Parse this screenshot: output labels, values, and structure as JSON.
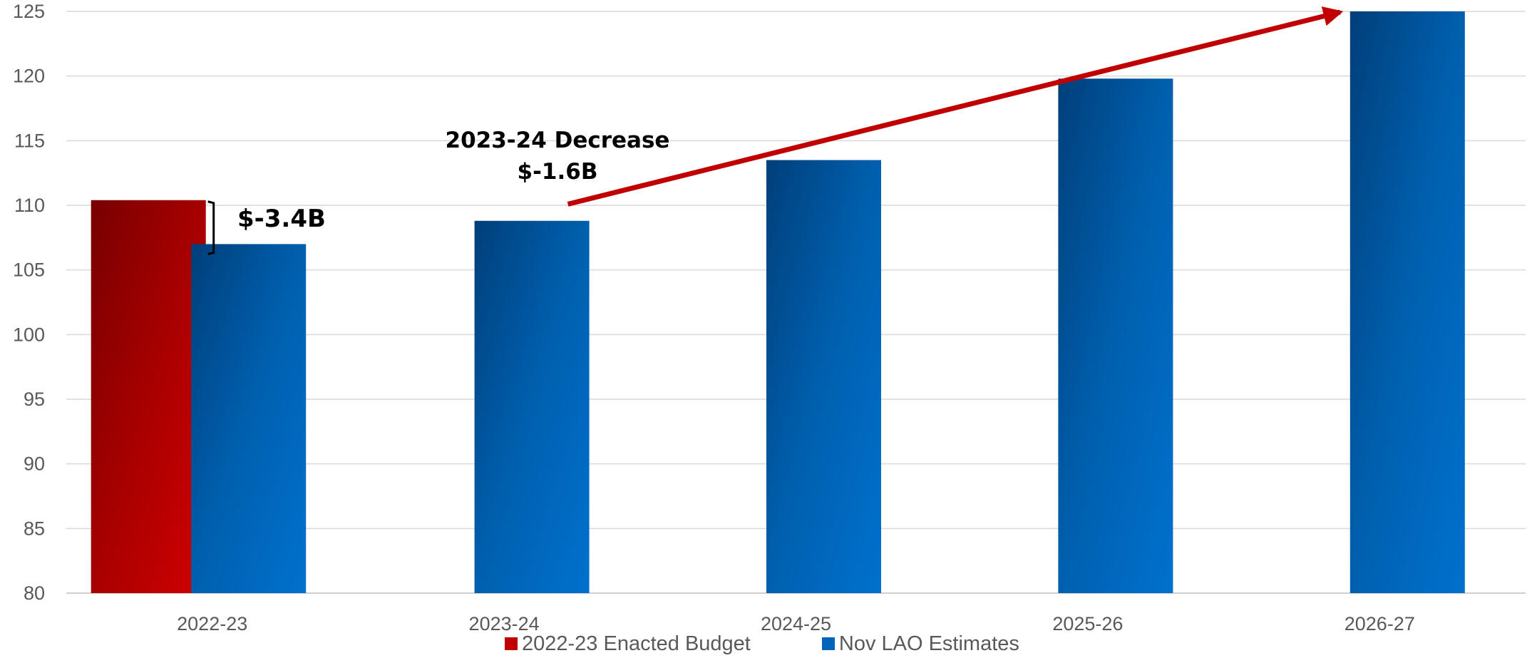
{
  "chart_data": {
    "type": "bar",
    "title": "",
    "xlabel": "",
    "ylabel": "",
    "categories": [
      "2022-23",
      "2023-24",
      "2024-25",
      "2025-26",
      "2026-27"
    ],
    "series": [
      {
        "name": "2022-23 Enacted Budget",
        "color": "#C00000",
        "values": [
          110.4,
          null,
          null,
          null,
          null
        ]
      },
      {
        "name": "Nov LAO Estimates",
        "color": "#0064B9",
        "values": [
          107.0,
          108.8,
          113.5,
          119.8,
          125.0
        ]
      }
    ],
    "ylim": [
      80,
      125
    ],
    "yticks": [
      80,
      85,
      90,
      95,
      100,
      105,
      110,
      115,
      120,
      125
    ],
    "grid": true,
    "legend_position": "bottom",
    "annotations": [
      {
        "id": "diff",
        "text": "$-3.4B"
      },
      {
        "id": "decrease_line1",
        "text": "2023-24 Decrease"
      },
      {
        "id": "decrease_line2",
        "text": "$-1.6B"
      }
    ],
    "trend_arrow": {
      "from": {
        "category": "2023-24",
        "value": 110.2
      },
      "to": {
        "category": "2026-27",
        "value": 125.0
      },
      "color": "#C00000"
    }
  }
}
